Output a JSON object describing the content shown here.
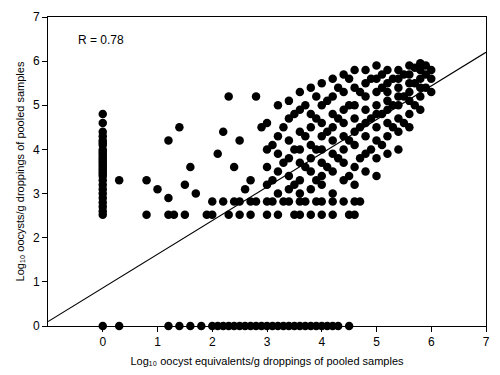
{
  "chart_data": {
    "type": "scatter",
    "x_label": "Log₁₀ oocyst equivalents/g droppings of pooled samples",
    "y_label": "Log₁₀ oocysts/g droppings of pooled samples",
    "annotations": [
      {
        "text": "R = 0.78"
      }
    ],
    "xlim": [
      -1,
      7
    ],
    "xticks": [
      0,
      1,
      2,
      3,
      4,
      5,
      6,
      7
    ],
    "ylim": [
      0,
      7
    ],
    "yticks": [
      0,
      1,
      2,
      3,
      4,
      5,
      6,
      7
    ],
    "grid": false,
    "series": [
      {
        "type": "scatter",
        "color": "#000000",
        "marker": "circle",
        "x": [
          0,
          0,
          0,
          0,
          0,
          0,
          0,
          0,
          0,
          0,
          0,
          0,
          0,
          0,
          0,
          0,
          0,
          0,
          0,
          0,
          0,
          0,
          0,
          0,
          0,
          0,
          0,
          0,
          0
        ],
        "values": [
          4.8,
          4.6,
          4.4,
          4.3,
          4.2,
          4.15,
          4.1,
          4.0,
          3.95,
          3.9,
          3.85,
          3.8,
          3.75,
          3.7,
          3.65,
          3.6,
          3.55,
          3.5,
          3.45,
          3.4,
          3.3,
          3.2,
          3.1,
          3.0,
          2.9,
          2.8,
          2.7,
          2.6,
          2.52
        ]
      },
      {
        "type": "scatter",
        "color": "#000000",
        "marker": "circle",
        "x": [
          0,
          0.3,
          1.2,
          1.4,
          1.6,
          1.8,
          2.0,
          2.1,
          2.2,
          2.3,
          2.4,
          2.5,
          2.6,
          2.7,
          2.8,
          2.9,
          3.0,
          3.1,
          3.2,
          3.3,
          3.4,
          3.5,
          3.6,
          3.7,
          3.8,
          3.9,
          4.0,
          4.1,
          4.2,
          4.3,
          4.5
        ],
        "values": [
          0,
          0,
          0,
          0,
          0,
          0,
          0,
          0,
          0,
          0,
          0,
          0,
          0,
          0,
          0,
          0,
          0,
          0,
          0,
          0,
          0,
          0,
          0,
          0,
          0,
          0,
          0,
          0,
          0,
          0,
          0
        ]
      },
      {
        "type": "scatter",
        "color": "#000000",
        "marker": "circle",
        "x": [
          0.8,
          1.2,
          1.3,
          1.5,
          1.9,
          2.0,
          2.3,
          2.5,
          2.7,
          3.0,
          3.2,
          3.5,
          3.6,
          3.8,
          4.0,
          4.2,
          4.5,
          4.6
        ],
        "values": [
          2.52,
          2.52,
          2.52,
          2.52,
          2.52,
          2.52,
          2.52,
          2.52,
          2.52,
          2.52,
          2.52,
          2.52,
          2.52,
          2.52,
          2.52,
          2.52,
          2.52,
          2.52
        ]
      },
      {
        "type": "scatter",
        "color": "#000000",
        "marker": "circle",
        "x": [
          2.0,
          2.2,
          2.4,
          2.5,
          2.7,
          2.8,
          3.0,
          3.1,
          3.3,
          3.4,
          3.6,
          3.7,
          3.9,
          4.0,
          4.2,
          4.4,
          4.6,
          4.7
        ],
        "values": [
          2.82,
          2.82,
          2.82,
          2.82,
          2.82,
          2.82,
          2.82,
          2.82,
          2.82,
          2.82,
          2.82,
          2.82,
          2.82,
          2.82,
          2.82,
          2.82,
          2.82,
          2.82
        ]
      },
      {
        "type": "scatter",
        "color": "#000000",
        "marker": "circle",
        "x": [
          0.3,
          0.8,
          1.0,
          1.2,
          1.4,
          1.5,
          1.2,
          1.6,
          1.7,
          2.3,
          2.5,
          2.4,
          2.1,
          2.2,
          2.7,
          2.8,
          2.9,
          2.6
        ],
        "values": [
          3.3,
          3.3,
          3.1,
          4.2,
          4.5,
          3.2,
          2.9,
          3.6,
          3.0,
          5.2,
          4.2,
          3.6,
          3.9,
          4.4,
          3.3,
          5.2,
          4.5,
          3.1
        ]
      },
      {
        "type": "scatter",
        "color": "#000000",
        "marker": "circle",
        "x": [
          3.0,
          3.0,
          3.0,
          3.0,
          3.1,
          3.1,
          3.2,
          3.2,
          3.2,
          3.2,
          3.2,
          3.3,
          3.3,
          3.4,
          3.4,
          3.4,
          3.4,
          3.4,
          3.4,
          3.5,
          3.5,
          3.5,
          3.6,
          3.6,
          3.6,
          3.6,
          3.6,
          3.6,
          3.6,
          3.7,
          3.7,
          3.7,
          3.8,
          3.8,
          3.8,
          3.8,
          3.8,
          3.8,
          3.8,
          3.9,
          3.9,
          3.9,
          3.9,
          4.0,
          4.0,
          4.0,
          4.0,
          4.0,
          4.0,
          4.0,
          4.0,
          4.1,
          4.1,
          4.1,
          4.2,
          4.2,
          4.2,
          4.2,
          4.2,
          4.2,
          4.2,
          4.2,
          4.3,
          4.3,
          4.3,
          4.4,
          4.4,
          4.4,
          4.4,
          4.4,
          4.4,
          4.4,
          4.4,
          4.5,
          4.5,
          4.5,
          4.5,
          4.6,
          4.6,
          4.6,
          4.6,
          4.6,
          4.6,
          4.6,
          4.6,
          4.7,
          4.7,
          4.7,
          4.8,
          4.8,
          4.8,
          4.8,
          4.8,
          4.8,
          4.8,
          4.8,
          4.9,
          4.9,
          4.9,
          5.0,
          5.0,
          5.0,
          5.0,
          5.0,
          5.0,
          5.0,
          5.0,
          5.0,
          5.1,
          5.1,
          5.1,
          5.1,
          5.2,
          5.2,
          5.2,
          5.2,
          5.2,
          5.2,
          5.2,
          5.2,
          5.3,
          5.3,
          5.3,
          5.4,
          5.4,
          5.4,
          5.4,
          5.4,
          5.4,
          5.4,
          5.4,
          5.5,
          5.5,
          5.5,
          5.6,
          5.6,
          5.6,
          5.6,
          5.6,
          5.6,
          5.6,
          5.7,
          5.7,
          5.7,
          5.8,
          5.8,
          5.8,
          5.8,
          5.8,
          5.8,
          5.9,
          5.9,
          5.9,
          6.0,
          6.0,
          6.0
        ],
        "values": [
          3.2,
          3.6,
          4.0,
          4.6,
          3.3,
          4.1,
          3.0,
          3.5,
          3.9,
          4.3,
          5.0,
          3.7,
          4.5,
          3.1,
          3.4,
          3.8,
          4.2,
          4.7,
          5.1,
          3.2,
          4.0,
          4.8,
          3.0,
          3.3,
          3.7,
          4.0,
          4.4,
          4.9,
          5.3,
          3.6,
          4.3,
          5.0,
          3.1,
          3.5,
          3.8,
          4.1,
          4.5,
          4.8,
          5.4,
          3.3,
          4.0,
          4.7,
          5.2,
          3.2,
          3.4,
          3.7,
          4.0,
          4.3,
          4.6,
          5.0,
          5.5,
          3.6,
          4.4,
          5.1,
          3.0,
          3.5,
          3.9,
          4.2,
          4.5,
          4.8,
          5.2,
          5.6,
          3.8,
          4.7,
          5.4,
          3.3,
          3.7,
          4.0,
          4.3,
          4.6,
          4.9,
          5.3,
          5.7,
          3.4,
          4.2,
          5.0,
          5.6,
          3.2,
          3.6,
          4.1,
          4.4,
          4.7,
          5.0,
          5.4,
          5.8,
          3.8,
          4.5,
          5.3,
          3.5,
          3.9,
          4.3,
          4.6,
          4.9,
          5.2,
          5.5,
          5.8,
          4.0,
          4.7,
          5.6,
          3.4,
          3.8,
          4.2,
          4.5,
          4.8,
          5.0,
          5.3,
          5.6,
          5.9,
          4.1,
          4.8,
          5.4,
          5.7,
          3.9,
          4.3,
          4.6,
          4.9,
          5.1,
          5.3,
          5.5,
          5.8,
          4.5,
          5.0,
          5.6,
          4.0,
          4.4,
          4.7,
          5.0,
          5.2,
          5.4,
          5.6,
          5.8,
          4.6,
          5.2,
          5.7,
          4.5,
          4.8,
          5.1,
          5.3,
          5.5,
          5.7,
          5.9,
          5.0,
          5.5,
          5.85,
          4.9,
          5.2,
          5.4,
          5.6,
          5.8,
          5.95,
          5.4,
          5.7,
          5.9,
          5.3,
          5.6,
          5.8
        ]
      },
      {
        "type": "line",
        "color": "#000000",
        "line_style": "solid",
        "x": [
          -1,
          7
        ],
        "values": [
          0.1,
          6.2
        ]
      }
    ]
  }
}
